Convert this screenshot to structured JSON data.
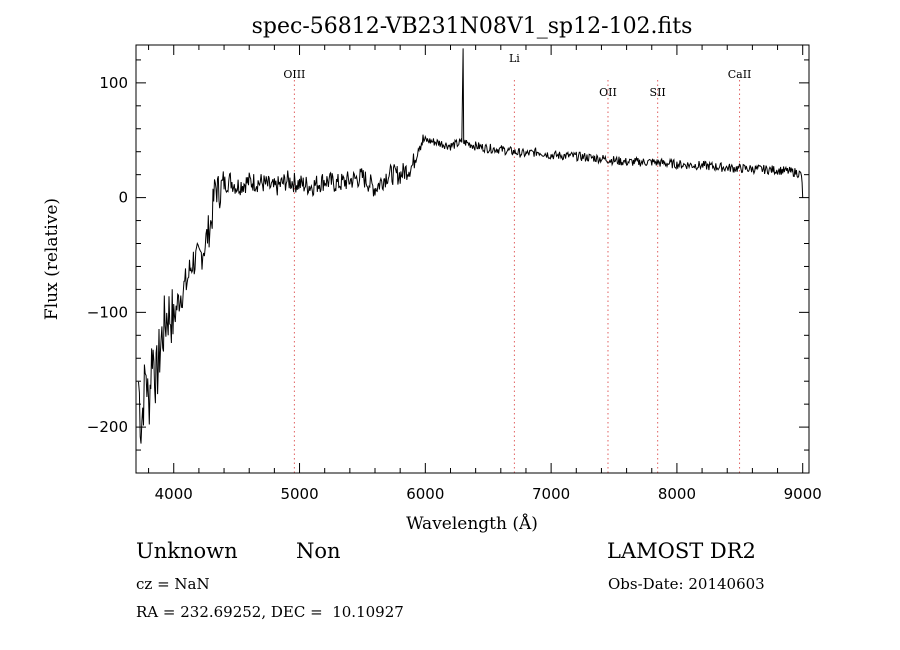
{
  "chart_data": {
    "type": "line",
    "title": "spec-56812-VB231N08V1_sp12-102.fits",
    "xlabel": "Wavelength (Å)",
    "ylabel": "Flux (relative)",
    "xlim": [
      3700,
      9050
    ],
    "ylim": [
      -240,
      133
    ],
    "xticks": [
      4000,
      5000,
      6000,
      7000,
      8000,
      9000
    ],
    "yticks": [
      -200,
      -100,
      0,
      100
    ],
    "xtick_labels": [
      "4000",
      "5000",
      "6000",
      "7000",
      "8000",
      "9000"
    ],
    "ytick_labels": [
      "−200",
      "−100",
      "0",
      "100"
    ],
    "grid": false,
    "line_color": "#000000",
    "marker_line_color": "#e06060",
    "lines": [
      {
        "label": "OIII",
        "wavelength": 4959
      },
      {
        "label": "Li",
        "wavelength": 6708
      },
      {
        "label": "OII",
        "wavelength": 7452
      },
      {
        "label": "SII",
        "wavelength": 7847
      },
      {
        "label": "CaII",
        "wavelength": 8498
      }
    ],
    "series": [
      {
        "x": [
          3720,
          3740,
          3760,
          3780,
          3800,
          3830,
          3860,
          3900,
          3950,
          4000,
          4050,
          4100,
          4150,
          4200,
          4250,
          4300,
          4330,
          4360,
          4400,
          4450,
          4500,
          4600,
          4700,
          4800,
          4900,
          5000,
          5100,
          5200,
          5300,
          5400,
          5500,
          5600,
          5700,
          5800,
          5900,
          5950,
          6000,
          6100,
          6200,
          6290,
          6300,
          6305,
          6320,
          6400,
          6500,
          6600,
          6700,
          6800,
          6900,
          7000,
          7200,
          7400,
          7600,
          7800,
          8000,
          8200,
          8400,
          8600,
          8800,
          8950,
          8990,
          9000
        ],
        "y": [
          -160,
          -200,
          -175,
          -150,
          -185,
          -130,
          -160,
          -125,
          -100,
          -105,
          -85,
          -75,
          -55,
          -55,
          -40,
          -20,
          10,
          5,
          12,
          15,
          10,
          14,
          13,
          8,
          15,
          12,
          10,
          15,
          12,
          15,
          18,
          8,
          20,
          20,
          28,
          48,
          50,
          48,
          45,
          48,
          130,
          48,
          48,
          45,
          43,
          42,
          40,
          38,
          40,
          37,
          36,
          34,
          31,
          31,
          29,
          28,
          26,
          25,
          24,
          22,
          20,
          0
        ]
      }
    ]
  },
  "footer": {
    "object_class": "Unknown",
    "object_subclass": "Non",
    "survey": "LAMOST DR2",
    "cz": "cz = NaN",
    "obs_date": "Obs-Date: 20140603",
    "ra_dec": "RA = 232.69252, DEC =  10.10927"
  }
}
